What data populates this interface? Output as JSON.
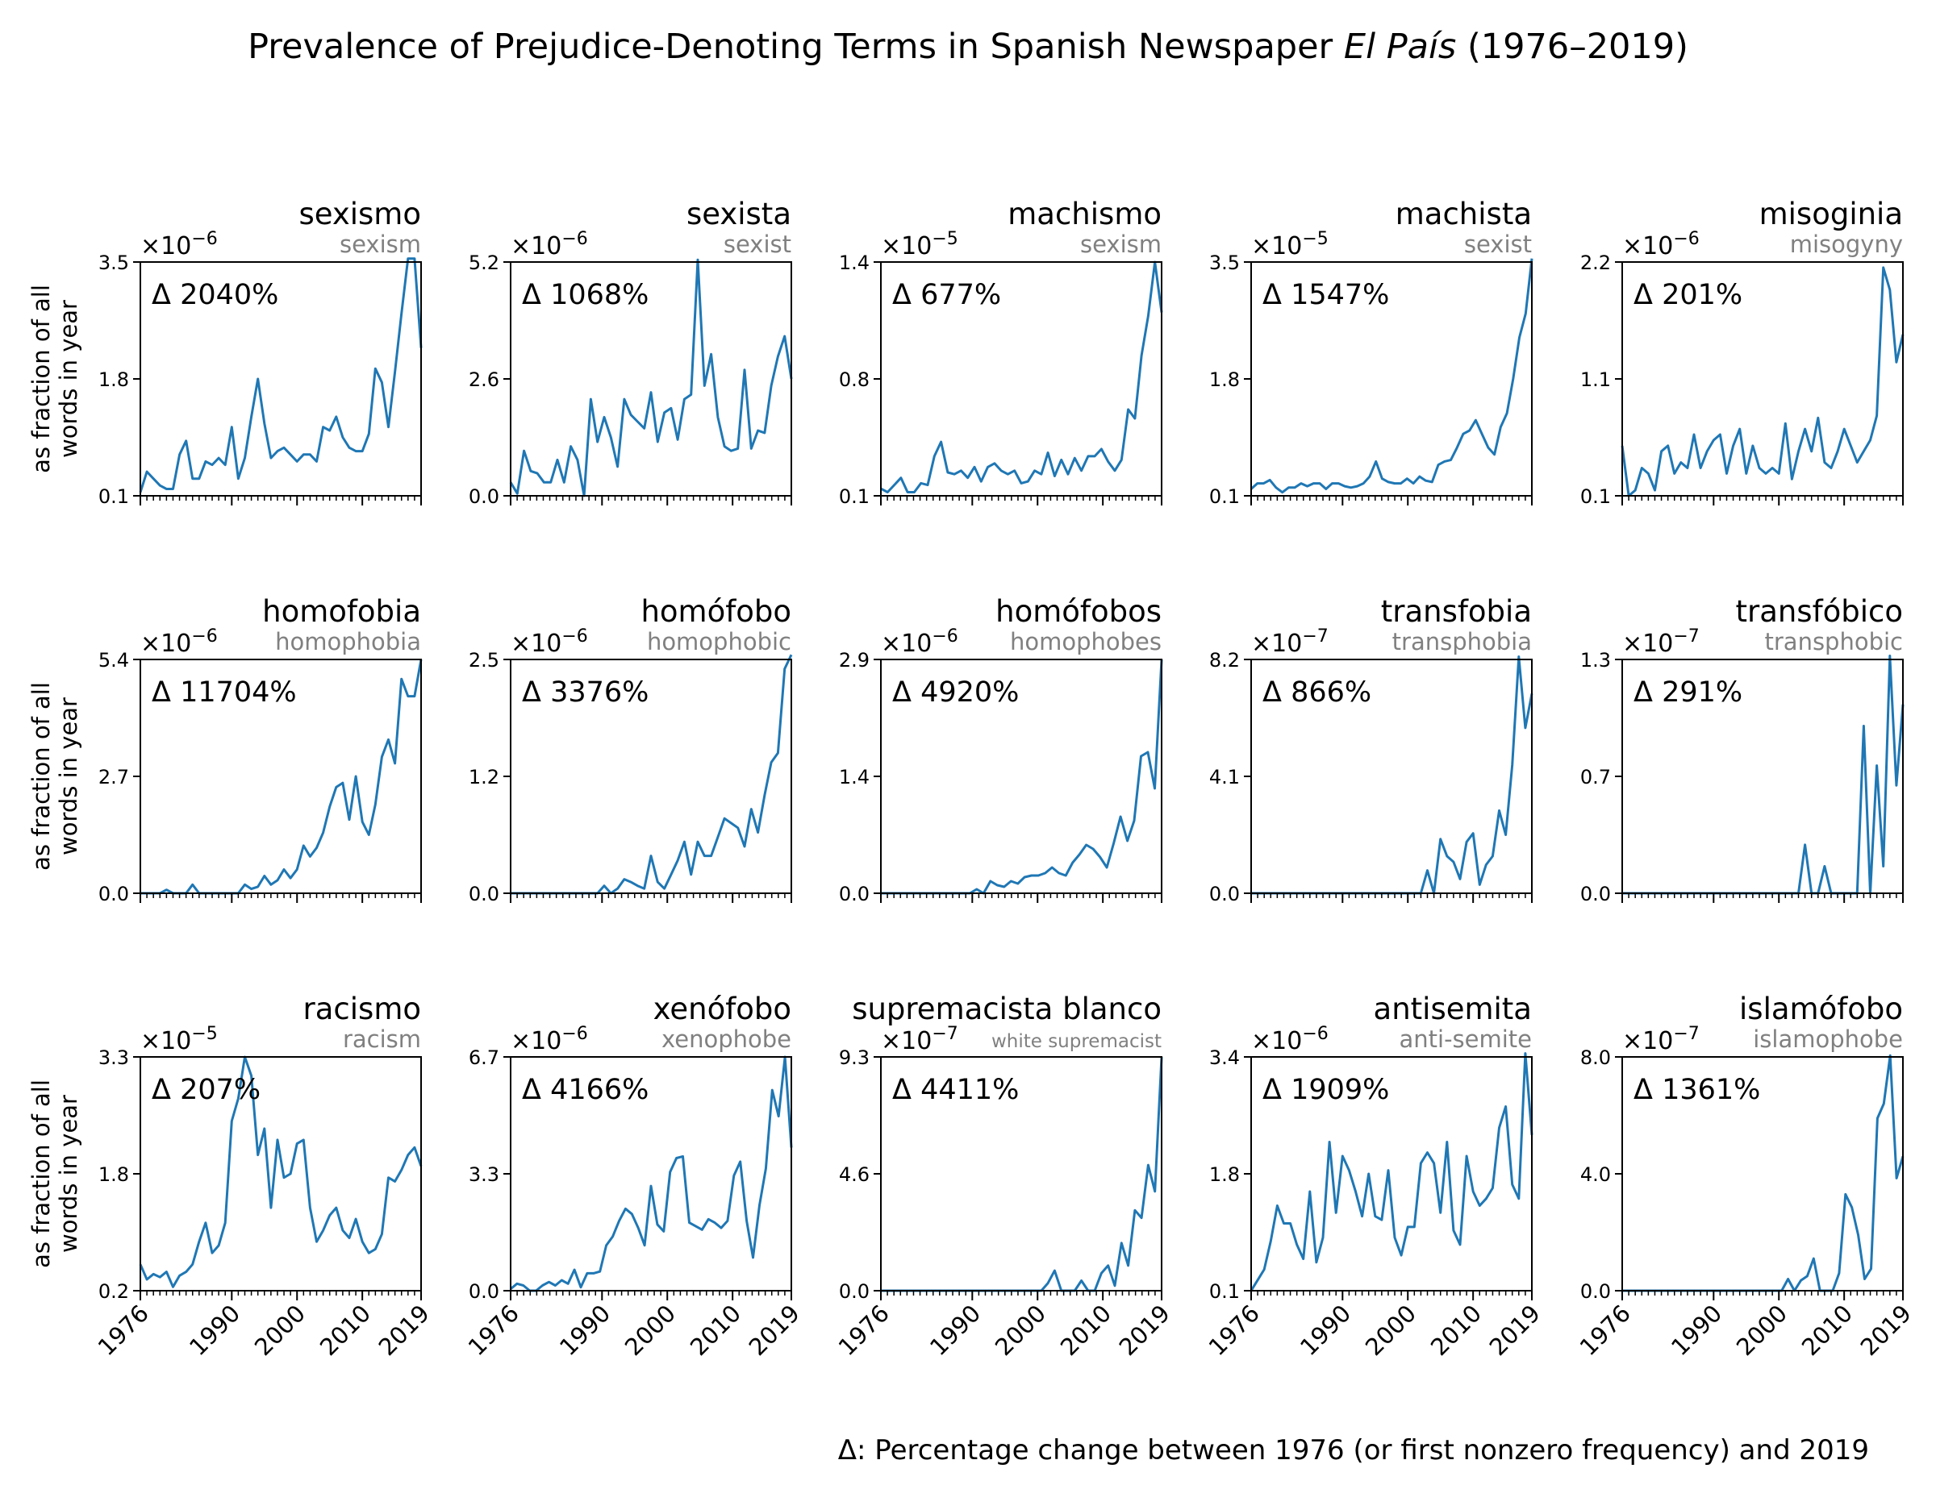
{
  "figure": {
    "title_main": "Prevalence of Prejudice-Denoting Terms in Spanish Newspaper ",
    "title_italic": "El País",
    "title_tail": " (1976–2019)",
    "footnote": "Δ: Percentage change between 1976 (or first nonzero frequency) and 2019",
    "ylabel_line1": "as fraction of all",
    "ylabel_line2": "words in year",
    "line_color": "#1f77b4"
  },
  "chart_data": [
    {
      "type": "line",
      "title": "sexismo",
      "subtitle": "sexism",
      "exp": "−6",
      "delta": "Δ 2040%",
      "ylim": [
        0.1,
        3.5
      ],
      "yticks": [
        "0.1",
        "1.8",
        "3.5"
      ],
      "xlim": [
        1976,
        2019
      ],
      "y": [
        0.15,
        0.45,
        0.35,
        0.25,
        0.2,
        0.2,
        0.7,
        0.9,
        0.35,
        0.35,
        0.6,
        0.55,
        0.65,
        0.55,
        1.1,
        0.35,
        0.65,
        1.25,
        1.8,
        1.15,
        0.65,
        0.75,
        0.8,
        0.7,
        0.6,
        0.7,
        0.7,
        0.6,
        1.1,
        1.05,
        1.25,
        0.95,
        0.8,
        0.75,
        0.75,
        1.0,
        1.95,
        1.75,
        1.1,
        1.9,
        2.75,
        3.55,
        3.55,
        2.25
      ]
    },
    {
      "type": "line",
      "title": "sexista",
      "subtitle": "sexist",
      "exp": "−6",
      "delta": "Δ 1068%",
      "ylim": [
        0.0,
        5.2
      ],
      "yticks": [
        "0.0",
        "2.6",
        "5.2"
      ],
      "xlim": [
        1976,
        2019
      ],
      "y": [
        0.3,
        0.05,
        1.0,
        0.55,
        0.5,
        0.3,
        0.3,
        0.8,
        0.3,
        1.1,
        0.8,
        0.0,
        2.15,
        1.2,
        1.75,
        1.3,
        0.65,
        2.15,
        1.8,
        1.65,
        1.5,
        2.3,
        1.2,
        1.85,
        1.95,
        1.25,
        2.15,
        2.25,
        5.25,
        2.45,
        3.15,
        1.75,
        1.1,
        1.0,
        1.05,
        2.8,
        1.05,
        1.45,
        1.4,
        2.45,
        3.1,
        3.55,
        2.6
      ]
    },
    {
      "type": "line",
      "title": "machismo",
      "subtitle": "sexism",
      "exp": "−5",
      "delta": "Δ 677%",
      "ylim": [
        0.1,
        1.4
      ],
      "yticks": [
        "0.1",
        "0.8",
        "1.4"
      ],
      "xlim": [
        1976,
        2019
      ],
      "y": [
        0.14,
        0.12,
        0.16,
        0.2,
        0.12,
        0.12,
        0.17,
        0.16,
        0.32,
        0.4,
        0.23,
        0.22,
        0.24,
        0.2,
        0.26,
        0.18,
        0.26,
        0.28,
        0.24,
        0.22,
        0.24,
        0.17,
        0.18,
        0.24,
        0.22,
        0.34,
        0.21,
        0.3,
        0.22,
        0.31,
        0.24,
        0.32,
        0.32,
        0.36,
        0.29,
        0.24,
        0.3,
        0.58,
        0.53,
        0.88,
        1.1,
        1.4,
        1.12
      ]
    },
    {
      "type": "line",
      "title": "machista",
      "subtitle": "sexist",
      "exp": "−5",
      "delta": "Δ 1547%",
      "ylim": [
        0.1,
        3.5
      ],
      "yticks": [
        "0.1",
        "1.8",
        "3.5"
      ],
      "xlim": [
        1976,
        2019
      ],
      "y": [
        0.2,
        0.28,
        0.28,
        0.33,
        0.22,
        0.15,
        0.22,
        0.22,
        0.28,
        0.24,
        0.28,
        0.28,
        0.2,
        0.28,
        0.28,
        0.24,
        0.22,
        0.24,
        0.28,
        0.38,
        0.6,
        0.35,
        0.3,
        0.28,
        0.28,
        0.35,
        0.28,
        0.38,
        0.32,
        0.3,
        0.55,
        0.6,
        0.62,
        0.8,
        1.0,
        1.05,
        1.2,
        1.0,
        0.8,
        0.7,
        1.1,
        1.3,
        1.8,
        2.4,
        2.75,
        3.55
      ]
    },
    {
      "type": "line",
      "title": "misoginia",
      "subtitle": "misogyny",
      "exp": "−6",
      "delta": "Δ 201%",
      "ylim": [
        0.1,
        2.2
      ],
      "yticks": [
        "0.1",
        "1.1",
        "2.2"
      ],
      "xlim": [
        1976,
        2019
      ],
      "y": [
        0.55,
        0.1,
        0.15,
        0.35,
        0.3,
        0.15,
        0.5,
        0.55,
        0.3,
        0.4,
        0.35,
        0.65,
        0.35,
        0.5,
        0.6,
        0.65,
        0.3,
        0.55,
        0.7,
        0.3,
        0.55,
        0.35,
        0.3,
        0.35,
        0.3,
        0.75,
        0.25,
        0.5,
        0.7,
        0.5,
        0.8,
        0.4,
        0.35,
        0.5,
        0.7,
        0.55,
        0.4,
        0.5,
        0.6,
        0.82,
        2.15,
        1.95,
        1.3,
        1.55
      ]
    },
    {
      "type": "line",
      "title": "homofobia",
      "subtitle": "homophobia",
      "exp": "−6",
      "delta": "Δ 11704%",
      "ylim": [
        0.0,
        5.4
      ],
      "yticks": [
        "0.0",
        "2.7",
        "5.4"
      ],
      "xlim": [
        1976,
        2019
      ],
      "y": [
        0.0,
        0.0,
        0.0,
        0.0,
        0.08,
        0.0,
        0.0,
        0.0,
        0.2,
        0.0,
        0.0,
        0.0,
        0.0,
        0.0,
        0.0,
        0.0,
        0.2,
        0.1,
        0.15,
        0.4,
        0.2,
        0.3,
        0.55,
        0.35,
        0.55,
        1.1,
        0.85,
        1.05,
        1.4,
        2.0,
        2.45,
        2.55,
        1.7,
        2.7,
        1.65,
        1.35,
        2.05,
        3.15,
        3.55,
        3.0,
        4.95,
        4.55,
        4.55,
        5.4
      ]
    },
    {
      "type": "line",
      "title": "homófobo",
      "subtitle": "homophobic",
      "exp": "−6",
      "delta": "Δ 3376%",
      "ylim": [
        0.0,
        2.5
      ],
      "yticks": [
        "0.0",
        "1.2",
        "2.5"
      ],
      "xlim": [
        1976,
        2019
      ],
      "y": [
        0.0,
        0.0,
        0.0,
        0.0,
        0.0,
        0.0,
        0.0,
        0.0,
        0.0,
        0.0,
        0.0,
        0.0,
        0.0,
        0.0,
        0.08,
        0.0,
        0.05,
        0.15,
        0.12,
        0.08,
        0.05,
        0.4,
        0.12,
        0.05,
        0.2,
        0.35,
        0.55,
        0.2,
        0.55,
        0.4,
        0.4,
        0.6,
        0.8,
        0.75,
        0.7,
        0.5,
        0.9,
        0.65,
        1.05,
        1.4,
        1.5,
        2.4,
        2.55
      ]
    },
    {
      "type": "line",
      "title": "homófobos",
      "subtitle": "homophobes",
      "exp": "−6",
      "delta": "Δ 4920%",
      "ylim": [
        0.0,
        2.9
      ],
      "yticks": [
        "0.0",
        "1.4",
        "2.9"
      ],
      "xlim": [
        1976,
        2019
      ],
      "y": [
        0.0,
        0.0,
        0.0,
        0.0,
        0.0,
        0.0,
        0.0,
        0.0,
        0.0,
        0.0,
        0.0,
        0.0,
        0.0,
        0.0,
        0.05,
        0.0,
        0.15,
        0.1,
        0.08,
        0.15,
        0.12,
        0.2,
        0.22,
        0.22,
        0.25,
        0.32,
        0.25,
        0.22,
        0.38,
        0.48,
        0.6,
        0.55,
        0.45,
        0.32,
        0.62,
        0.95,
        0.65,
        0.9,
        1.7,
        1.75,
        1.3,
        2.9
      ]
    },
    {
      "type": "line",
      "title": "transfobia",
      "subtitle": "transphobia",
      "exp": "−7",
      "delta": "Δ 866%",
      "ylim": [
        0.0,
        8.2
      ],
      "yticks": [
        "0.0",
        "4.1",
        "8.2"
      ],
      "xlim": [
        1976,
        2019
      ],
      "y": [
        0.0,
        0.0,
        0.0,
        0.0,
        0.0,
        0.0,
        0.0,
        0.0,
        0.0,
        0.0,
        0.0,
        0.0,
        0.0,
        0.0,
        0.0,
        0.0,
        0.0,
        0.0,
        0.0,
        0.0,
        0.0,
        0.0,
        0.0,
        0.0,
        0.0,
        0.0,
        0.0,
        0.8,
        0.0,
        1.9,
        1.3,
        1.1,
        0.5,
        1.8,
        2.1,
        0.3,
        1.0,
        1.3,
        2.9,
        2.05,
        4.5,
        8.3,
        5.8,
        7.0
      ]
    },
    {
      "type": "line",
      "title": "transfóbico",
      "subtitle": "transphobic",
      "exp": "−7",
      "delta": "Δ 291%",
      "ylim": [
        0.0,
        1.3
      ],
      "yticks": [
        "0.0",
        "0.7",
        "1.3"
      ],
      "xlim": [
        1976,
        2019
      ],
      "y": [
        0.0,
        0.0,
        0.0,
        0.0,
        0.0,
        0.0,
        0.0,
        0.0,
        0.0,
        0.0,
        0.0,
        0.0,
        0.0,
        0.0,
        0.0,
        0.0,
        0.0,
        0.0,
        0.0,
        0.0,
        0.0,
        0.0,
        0.0,
        0.0,
        0.0,
        0.0,
        0.0,
        0.0,
        0.27,
        0.0,
        0.0,
        0.15,
        0.0,
        0.0,
        0.0,
        0.0,
        0.0,
        0.93,
        0.0,
        0.71,
        0.15,
        1.32,
        0.6,
        1.05
      ]
    },
    {
      "type": "line",
      "title": "racismo",
      "subtitle": "racism",
      "exp": "−5",
      "delta": "Δ 207%",
      "ylim": [
        0.2,
        3.3
      ],
      "yticks": [
        "0.2",
        "1.8",
        "3.3"
      ],
      "xlim": [
        1976,
        2019
      ],
      "y": [
        0.55,
        0.35,
        0.42,
        0.38,
        0.45,
        0.25,
        0.4,
        0.45,
        0.55,
        0.85,
        1.1,
        0.7,
        0.8,
        1.1,
        2.45,
        2.75,
        3.3,
        3.05,
        2.0,
        2.35,
        1.3,
        2.2,
        1.7,
        1.75,
        2.15,
        2.2,
        1.3,
        0.85,
        1.0,
        1.2,
        1.3,
        1.0,
        0.9,
        1.15,
        0.85,
        0.7,
        0.75,
        0.95,
        1.7,
        1.65,
        1.8,
        2.0,
        2.1,
        1.85
      ]
    },
    {
      "type": "line",
      "title": "xenófobo",
      "subtitle": "xenophobe",
      "exp": "−6",
      "delta": "Δ 4166%",
      "ylim": [
        0.0,
        6.7
      ],
      "yticks": [
        "0.0",
        "3.3",
        "6.7"
      ],
      "xlim": [
        1976,
        2019
      ],
      "y": [
        0.05,
        0.2,
        0.15,
        0.0,
        0.0,
        0.15,
        0.25,
        0.15,
        0.3,
        0.2,
        0.6,
        0.1,
        0.5,
        0.5,
        0.55,
        1.3,
        1.55,
        2.0,
        2.35,
        2.2,
        1.8,
        1.3,
        3.0,
        1.9,
        1.7,
        3.4,
        3.8,
        3.85,
        1.95,
        1.85,
        1.75,
        2.05,
        1.95,
        1.8,
        2.0,
        3.3,
        3.7,
        2.0,
        0.95,
        2.45,
        3.5,
        5.75,
        5.0,
        6.7,
        4.1
      ]
    },
    {
      "type": "line",
      "title": "supremacista blanco",
      "subtitle": "white supremacist",
      "exp": "−7",
      "delta": "Δ 4411%",
      "ylim": [
        0.0,
        9.3
      ],
      "yticks": [
        "0.0",
        "4.6",
        "9.3"
      ],
      "xlim": [
        1976,
        2019
      ],
      "y": [
        0.0,
        0.0,
        0.0,
        0.0,
        0.0,
        0.0,
        0.0,
        0.0,
        0.0,
        0.0,
        0.0,
        0.0,
        0.0,
        0.0,
        0.0,
        0.0,
        0.0,
        0.0,
        0.0,
        0.0,
        0.0,
        0.0,
        0.0,
        0.0,
        0.0,
        0.3,
        0.8,
        0.0,
        0.0,
        0.0,
        0.4,
        0.0,
        0.0,
        0.7,
        1.0,
        0.2,
        1.9,
        1.0,
        3.2,
        2.9,
        5.0,
        3.95,
        9.3
      ]
    },
    {
      "type": "line",
      "title": "antisemita",
      "subtitle": "anti-semite",
      "exp": "−6",
      "delta": "Δ 1909%",
      "ylim": [
        0.1,
        3.4
      ],
      "yticks": [
        "0.1",
        "1.8",
        "3.4"
      ],
      "xlim": [
        1976,
        2019
      ],
      "y": [
        0.1,
        0.25,
        0.4,
        0.8,
        1.3,
        1.05,
        1.05,
        0.75,
        0.55,
        1.5,
        0.5,
        0.85,
        2.2,
        1.2,
        2.0,
        1.8,
        1.5,
        1.15,
        1.75,
        1.15,
        1.1,
        1.8,
        0.85,
        0.6,
        1.0,
        1.0,
        1.9,
        2.05,
        1.9,
        1.2,
        2.2,
        0.95,
        0.75,
        2.0,
        1.5,
        1.3,
        1.4,
        1.55,
        2.4,
        2.7,
        1.6,
        1.4,
        3.45,
        2.3
      ]
    },
    {
      "type": "line",
      "title": "islamófobo",
      "subtitle": "islamophobe",
      "exp": "−7",
      "delta": "Δ 1361%",
      "ylim": [
        0.0,
        8.0
      ],
      "yticks": [
        "0.0",
        "4.0",
        "8.0"
      ],
      "xlim": [
        1976,
        2019
      ],
      "y": [
        0.0,
        0.0,
        0.0,
        0.0,
        0.0,
        0.0,
        0.0,
        0.0,
        0.0,
        0.0,
        0.0,
        0.0,
        0.0,
        0.0,
        0.0,
        0.0,
        0.0,
        0.0,
        0.0,
        0.0,
        0.0,
        0.0,
        0.0,
        0.0,
        0.0,
        0.0,
        0.4,
        0.0,
        0.35,
        0.5,
        1.1,
        0.0,
        0.0,
        0.0,
        0.6,
        3.3,
        2.85,
        1.9,
        0.4,
        0.75,
        5.9,
        6.4,
        8.05,
        3.85,
        4.6
      ]
    }
  ],
  "x_tick_labels": [
    "1976",
    "1990",
    "2000",
    "2010",
    "2019"
  ],
  "x_tick_values": [
    1976,
    1990,
    2000,
    2010,
    2019
  ]
}
